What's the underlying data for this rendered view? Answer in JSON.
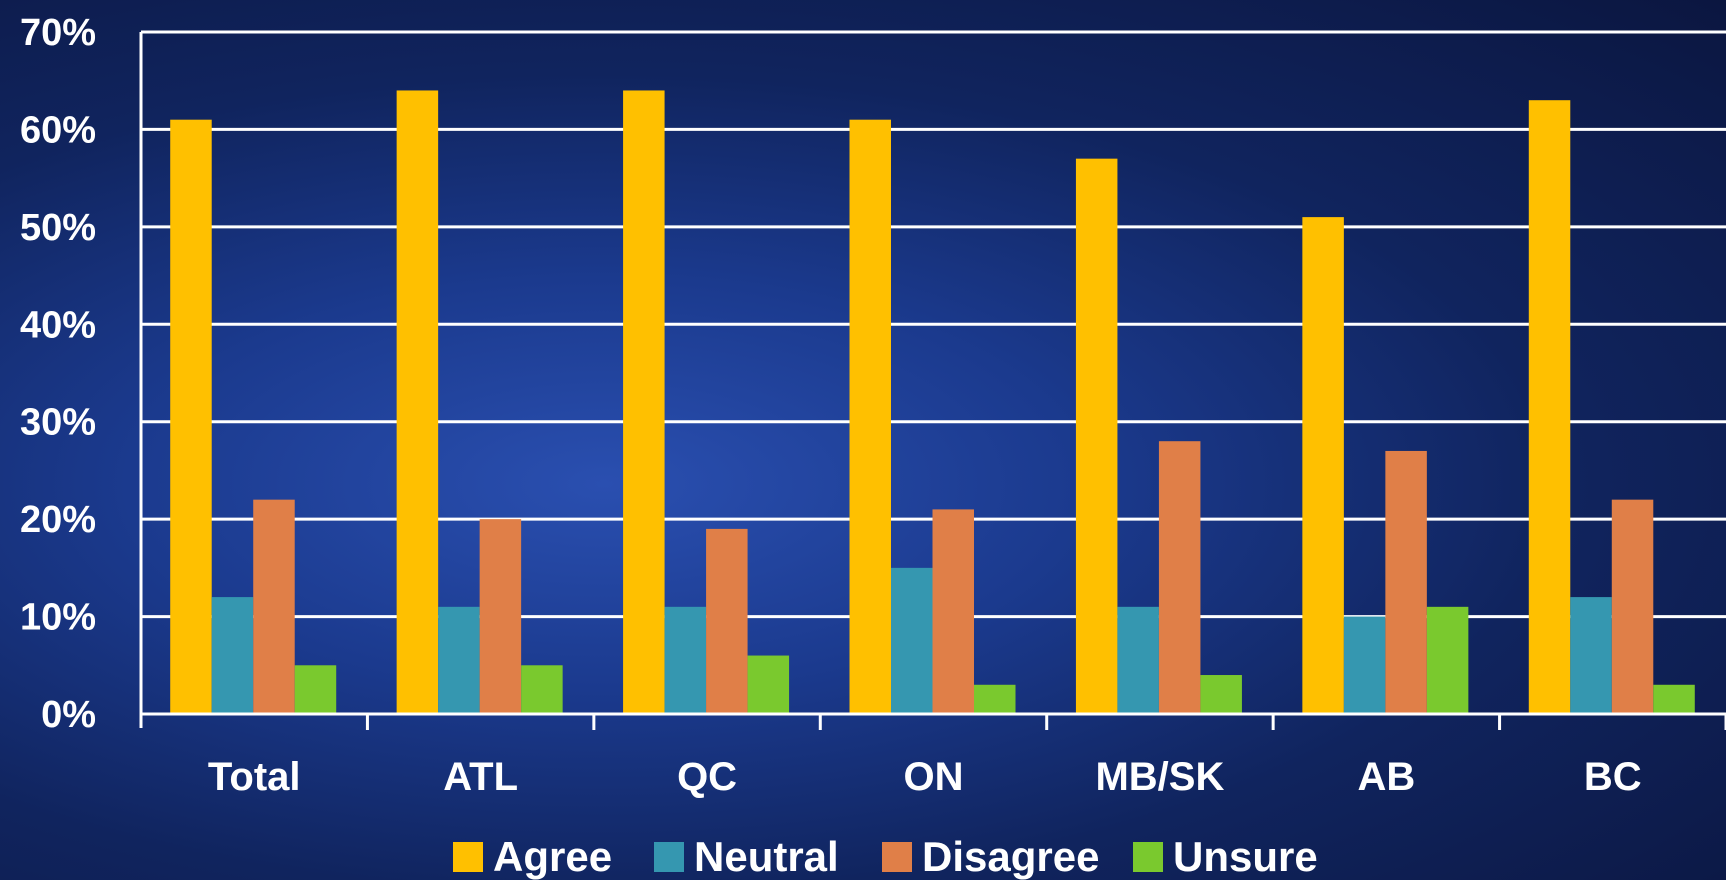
{
  "chart_data": {
    "type": "bar",
    "categories": [
      "Total",
      "ATL",
      "QC",
      "ON",
      "MB/SK",
      "AB",
      "BC"
    ],
    "series": [
      {
        "name": "Agree",
        "color": "#ffc000",
        "values": [
          61,
          64,
          64,
          61,
          57,
          51,
          63
        ]
      },
      {
        "name": "Neutral",
        "color": "#3597b0",
        "values": [
          12,
          11,
          11,
          15,
          11,
          10,
          12
        ]
      },
      {
        "name": "Disagree",
        "color": "#e07f48",
        "values": [
          22,
          20,
          19,
          21,
          28,
          27,
          22
        ]
      },
      {
        "name": "Unsure",
        "color": "#7ac92e",
        "values": [
          5,
          5,
          6,
          3,
          4,
          11,
          3
        ]
      }
    ],
    "ylim": [
      0,
      70
    ],
    "yticks": [
      "0%",
      "10%",
      "20%",
      "30%",
      "40%",
      "50%",
      "60%",
      "70%"
    ],
    "grid": true,
    "legend_position": "bottom"
  }
}
